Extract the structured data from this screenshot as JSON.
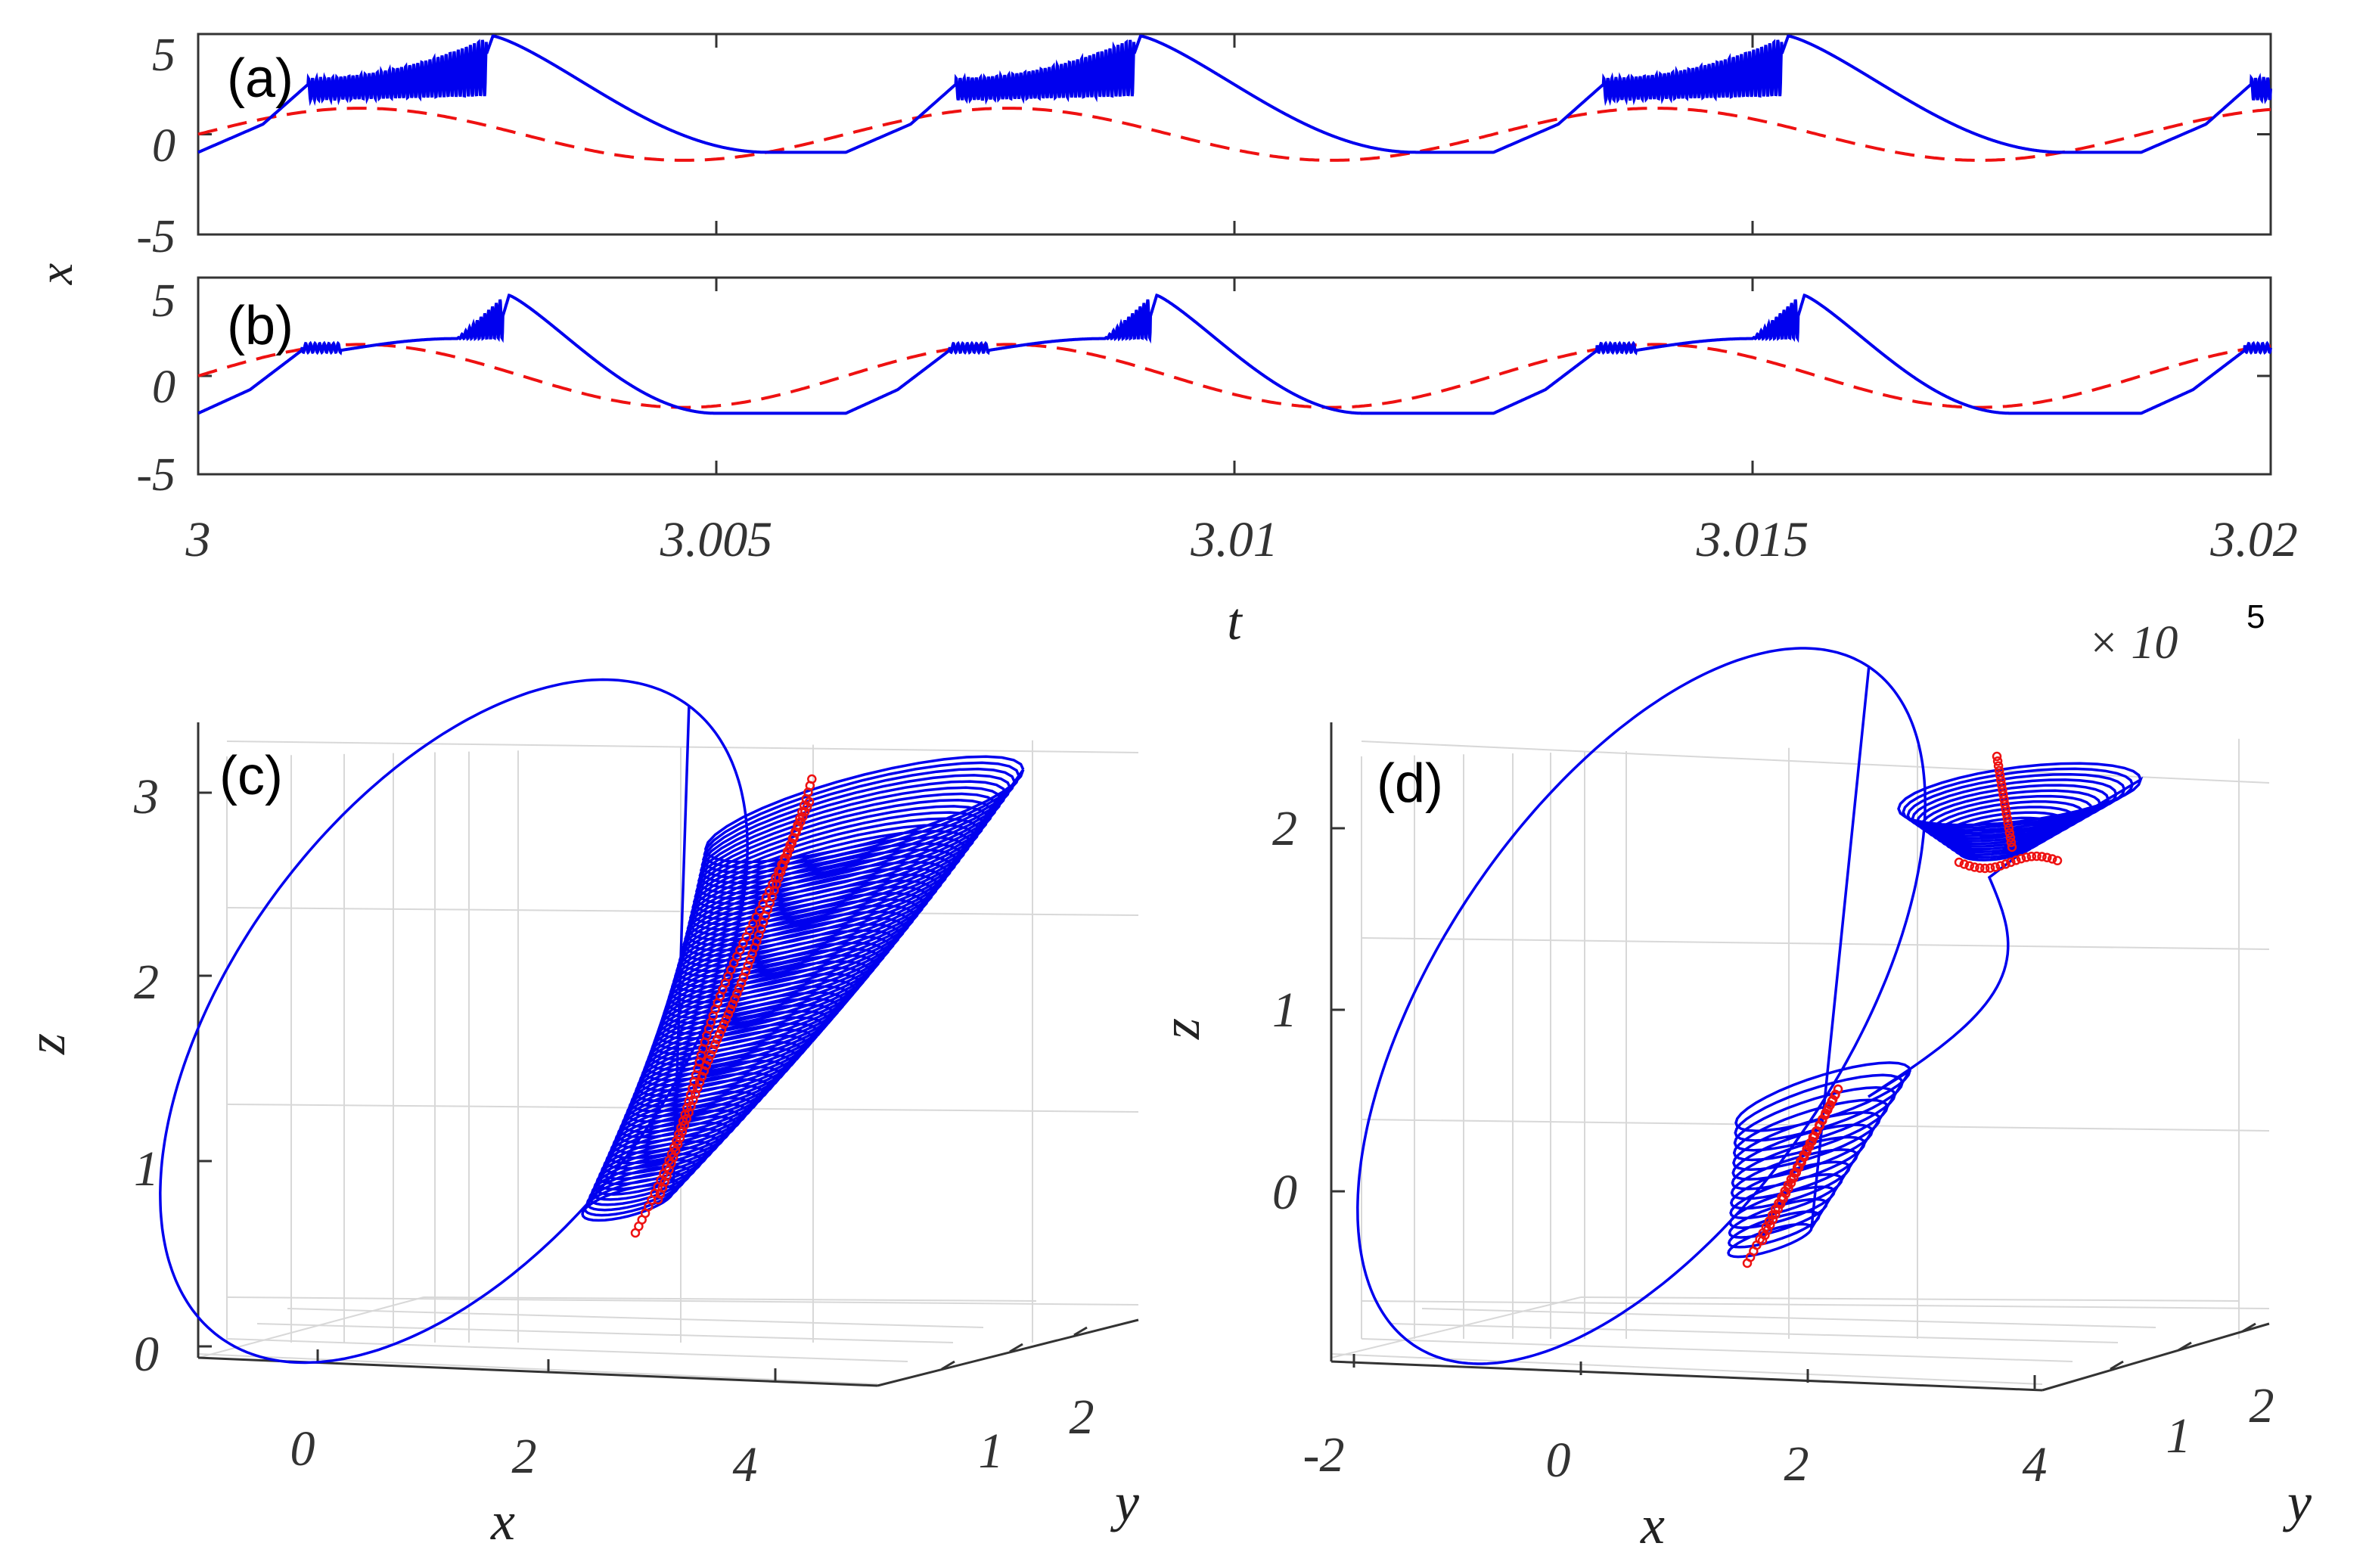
{
  "chart_data": [
    {
      "panel": "a",
      "type": "line",
      "panel_label": "(a)",
      "ylim": [
        -5,
        5
      ],
      "yticks": [
        "5",
        "0",
        "-5"
      ],
      "shared_ylabel": "x",
      "series": [
        {
          "color": "#0000ee",
          "style": "solid",
          "period": 0.00625,
          "spike_onset": 0.00165,
          "spike_end": 0.00445,
          "peak": 4.9,
          "trough": -0.9,
          "spike_band": [
            1.7,
            2.8
          ],
          "x": [
            3.0,
            3.02
          ]
        },
        {
          "color": "#ee0000",
          "style": "dashed",
          "amplitude": 1.3,
          "period": 0.00625,
          "x": [
            3.0,
            3.02
          ]
        }
      ]
    },
    {
      "panel": "b",
      "type": "line",
      "panel_label": "(b)",
      "ylim": [
        -5,
        5
      ],
      "yticks": [
        "5",
        "0",
        "-5"
      ],
      "xlim": [
        3.0,
        3.02
      ],
      "xticks": [
        "3",
        "3.005",
        "3.01",
        "3.015",
        "3.02"
      ],
      "xlabel": "t",
      "x_multiplier": "× 10",
      "x_multiplier_exp": "5",
      "series": [
        {
          "color": "#0000ee",
          "style": "solid",
          "period": 0.00625,
          "peak": 4.1,
          "trough": -1.9
        },
        {
          "color": "#ee0000",
          "style": "dashed",
          "amplitude": 1.6,
          "period": 0.00625
        }
      ]
    },
    {
      "panel": "c",
      "type": "line3d",
      "panel_label": "(c)",
      "zticks": [
        "0",
        "1",
        "2",
        "3"
      ],
      "xticks": [
        "0",
        "2",
        "4"
      ],
      "yticks": [
        "1",
        "2"
      ],
      "xlabel": "x",
      "ylabel": "y",
      "zlabel": "z",
      "zlim": [
        0,
        3.3
      ],
      "series": [
        {
          "color": "#0000ee",
          "style": "solid",
          "kind": "trajectory"
        },
        {
          "color": "#ee0000",
          "style": "markers",
          "kind": "section-points"
        }
      ]
    },
    {
      "panel": "d",
      "type": "line3d",
      "panel_label": "(d)",
      "zticks": [
        "0",
        "1",
        "2"
      ],
      "xticks": [
        "-2",
        "0",
        "2",
        "4"
      ],
      "yticks": [
        "1",
        "2"
      ],
      "xlabel": "x",
      "ylabel": "y",
      "zlabel": "z",
      "zlim": [
        -0.9,
        2.5
      ],
      "series": [
        {
          "color": "#0000ee",
          "style": "solid",
          "kind": "trajectory"
        },
        {
          "color": "#ee0000",
          "style": "markers",
          "kind": "section-points"
        }
      ]
    }
  ]
}
